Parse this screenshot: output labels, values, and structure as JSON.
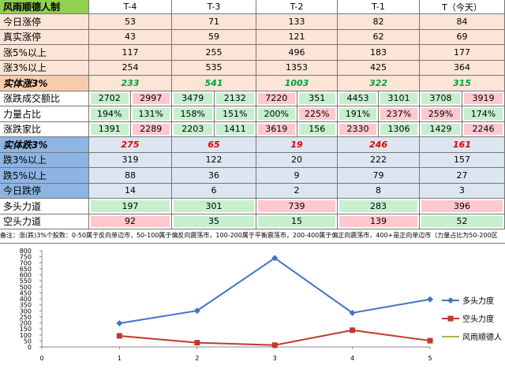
{
  "table": {
    "header": [
      "风雨顺德人制",
      "T-4",
      "T-3",
      "T-2",
      "T-1",
      "T（今天）"
    ],
    "rows": [
      {
        "label": "今日涨停",
        "cells": [
          53,
          71,
          133,
          82,
          84
        ],
        "fill": "#fce4d6"
      },
      {
        "label": "真实涨停",
        "cells": [
          43,
          59,
          121,
          62,
          69
        ],
        "fill": "#fce4d6"
      },
      {
        "label": "涨5%以上",
        "cells": [
          117,
          255,
          496,
          183,
          177
        ],
        "fill": "#fce4d6"
      },
      {
        "label": "涨3%以上",
        "cells": [
          254,
          535,
          1353,
          425,
          364
        ],
        "fill": "#fce4d6"
      },
      {
        "label": "实体涨3%",
        "cells": [
          233,
          541,
          1003,
          322,
          315
        ],
        "fill": "#fce4d6",
        "label_fill": "#f8cbad",
        "text_color": "#00a040",
        "emphasis": true
      },
      {
        "label": "涨跌成交额比",
        "cells": [
          2702,
          2997,
          3479,
          2132,
          7220,
          351,
          4453,
          3101,
          3708,
          3919
        ],
        "fills": [
          "#c6efce",
          "#ffc7ce",
          "#c6efce",
          "#c6efce",
          "#ffc7ce",
          "#c6efce",
          "#c6efce",
          "#c6efce",
          "#c6efce",
          "#ffc7ce"
        ]
      },
      {
        "label": "力量占比",
        "cells": [
          "194%",
          "131%",
          "158%",
          "151%",
          "200%",
          "225%",
          "191%",
          "237%",
          "259%",
          "174%"
        ],
        "fills": [
          "#c6efce",
          "#c6efce",
          "#c6efce",
          "#c6efce",
          "#c6efce",
          "#ffc7ce",
          "#c6efce",
          "#ffc7ce",
          "#ffc7ce",
          "#c6efce"
        ]
      },
      {
        "label": "涨跌家比",
        "cells": [
          1391,
          2289,
          2203,
          1411,
          3619,
          156,
          2330,
          1306,
          1429,
          2246
        ],
        "fills": [
          "#c6efce",
          "#ffc7ce",
          "#c6efce",
          "#c6efce",
          "#ffc7ce",
          "#c6efce",
          "#ffc7ce",
          "#c6efce",
          "#c6efce",
          "#ffc7ce"
        ]
      },
      {
        "label": "实体跌3%",
        "cells": [
          275,
          65,
          19,
          246,
          161
        ],
        "fill": "#dce6f1",
        "label_fill": "#8db4e2",
        "text_color": "#e00000",
        "emphasis": true
      },
      {
        "label": "跌3%以上",
        "cells": [
          319,
          122,
          20,
          222,
          157
        ],
        "fill": "#dce6f1",
        "label_fill": "#8db4e2"
      },
      {
        "label": "跌5%以上",
        "cells": [
          88,
          36,
          9,
          79,
          27
        ],
        "fill": "#dce6f1",
        "label_fill": "#8db4e2"
      },
      {
        "label": "今日跌停",
        "cells": [
          14,
          6,
          2,
          8,
          3
        ],
        "fill": "#dce6f1",
        "label_fill": "#8db4e2"
      },
      {
        "label": "多头力道",
        "cells": [
          197,
          301,
          739,
          283,
          396
        ],
        "fills": [
          "#c6efce",
          "#c6efce",
          "#ffc7ce",
          "#c6efce",
          "#ffc7ce"
        ]
      },
      {
        "label": "空头力道",
        "cells": [
          92,
          35,
          15,
          139,
          52
        ],
        "fills": [
          "#ffc7ce",
          "#c6efce",
          "#c6efce",
          "#ffc7ce",
          "#c6efce"
        ]
      }
    ],
    "note": "备注：涨(跌)3%个股数：0-50属于反向单边市，50-100属于偏反向震荡市，100-200属于平衡震荡市，200-400属于偏正向震荡市，400+是正向单边市（力量占比为50-200区"
  },
  "chart_data": {
    "type": "line",
    "x": [
      1,
      2,
      3,
      4,
      5
    ],
    "series": [
      {
        "name": "多头力度",
        "color": "#4472c4",
        "marker": "diamond",
        "values": [
          197,
          301,
          739,
          283,
          396
        ]
      },
      {
        "name": "空头力度",
        "color": "#c0392b",
        "marker": "square",
        "values": [
          92,
          35,
          15,
          139,
          52
        ]
      },
      {
        "name": "风雨顺德人",
        "color": "#9bbb59",
        "marker": "none",
        "values": [
          null,
          null,
          null,
          null,
          null
        ]
      }
    ],
    "xlim": [
      0,
      5
    ],
    "xticks": [
      0,
      1,
      2,
      3,
      4,
      5
    ],
    "ylim": [
      0,
      800
    ],
    "yticks": [
      0,
      50,
      100,
      150,
      200,
      250,
      300,
      350,
      400,
      450,
      500,
      550,
      600,
      650,
      700,
      750,
      800
    ],
    "legend": "right"
  }
}
